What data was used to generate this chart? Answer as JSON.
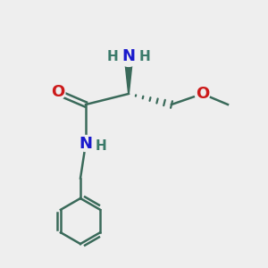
{
  "bg_color": "#eeeeee",
  "bond_color": "#3a6a5a",
  "N_color": "#1a1acc",
  "O_color": "#cc1a1a",
  "H_color": "#3a7a6a",
  "line_width": 1.8,
  "font_size_N": 13,
  "font_size_H": 11,
  "font_size_O": 13,
  "fig_size": [
    3.0,
    3.0
  ],
  "dpi": 100,
  "xlim": [
    0,
    10
  ],
  "ylim": [
    0,
    10
  ]
}
